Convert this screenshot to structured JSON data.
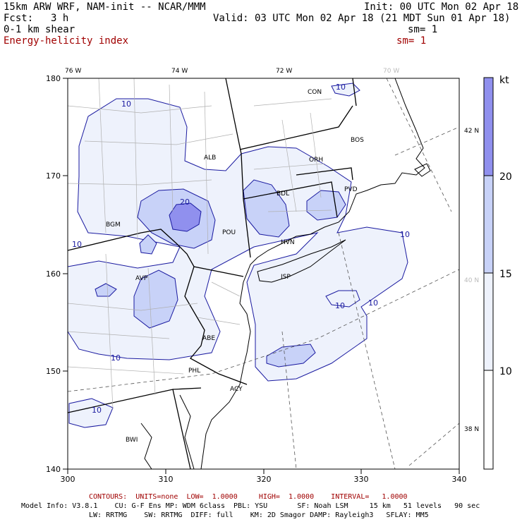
{
  "header": {
    "model_title": "15km ARW WRF, NAM-init -- NCAR/MMM",
    "init": "Init: 00 UTC Mon 02 Apr 18",
    "fcst_label": "Fcst:",
    "fcst_value": "3 h",
    "valid": "Valid: 03 UTC Mon 02 Apr 18 (21 MDT Sun 01 Apr 18)",
    "field1": "0-1 km shear",
    "field1_sm": "sm= 1",
    "field2": "Energy-helicity index",
    "field2_sm": "sm= 1"
  },
  "map": {
    "lon_top_labels": [
      "76 W",
      "74 W",
      "72 W",
      "70 W"
    ],
    "lat_right_labels": [
      "42 N",
      "40 N",
      "38 N"
    ],
    "x_ticks": [
      "300",
      "310",
      "320",
      "330",
      "340"
    ],
    "y_ticks": [
      "140",
      "150",
      "160",
      "170",
      "180"
    ],
    "cities": [
      "CON",
      "BOS",
      "ALB",
      "ORH",
      "PVD",
      "BDL",
      "BGM",
      "POU",
      "HVN",
      "AVP",
      "ISP",
      "ABE",
      "PHL",
      "ACY",
      "BWI"
    ],
    "contour_labels": [
      "10",
      "10",
      "10",
      "10",
      "10",
      "10",
      "10",
      "10",
      "20"
    ]
  },
  "colorbar": {
    "unit": "kt",
    "levels": [
      "20",
      "15",
      "10"
    ],
    "colors": [
      "#9090ee",
      "#c8d2f8",
      "#eef2fc",
      "#ffffff"
    ]
  },
  "footer": {
    "contours": "CONTOURS:  UNITS=none  LOW=  1.0000     HIGH=  1.0000    INTERVAL=   1.0000",
    "model_info_1": "Model Info: V3.8.1    CU: G-F Ens MP: WDM 6class  PBL: YSU       SF: Noah LSM     15 km   51 levels   90 sec",
    "model_info_2": "LW: RRTMG    SW: RRTMG  DIFF: full    KM: 2D Smagor DAMP: Rayleigh3   SFLAY: MM5"
  },
  "colors": {
    "shade_light": "#eef2fc",
    "shade_mid": "#c8d2f8",
    "shade_dark": "#9090ee",
    "contour": "#1a1aa0",
    "header_red": "#a00000"
  }
}
